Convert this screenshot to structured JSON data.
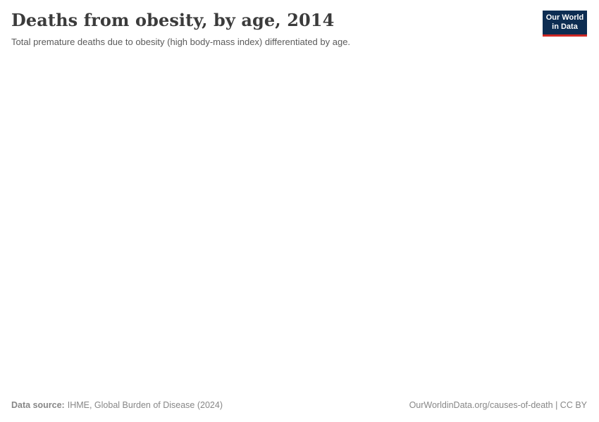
{
  "page": {
    "background_color": "#ffffff"
  },
  "header": {
    "title": "Deaths from obesity, by age, 2014",
    "subtitle": "Total premature deaths due to obesity (high body-mass index) differentiated by age.",
    "logo": {
      "line1": "Our World",
      "line2": "in Data",
      "background_color": "#0d2d52",
      "accent_color": "#cf2824",
      "text_color": "#ffffff"
    }
  },
  "chart_data": {
    "type": "bar",
    "title": "Deaths from obesity, by age, 2014",
    "subtitle": "Total premature deaths due to obesity (high body-mass index) differentiated by age.",
    "categories": [],
    "series": [],
    "layout_note": "Plot area is rendered blank in the screenshot; no axes, gridlines, legend, or data points are visible."
  },
  "footer": {
    "source_label": "Data source:",
    "source_value": "IHME, Global Burden of Disease (2024)",
    "origin": "OurWorldinData.org/causes-of-death | CC BY"
  }
}
